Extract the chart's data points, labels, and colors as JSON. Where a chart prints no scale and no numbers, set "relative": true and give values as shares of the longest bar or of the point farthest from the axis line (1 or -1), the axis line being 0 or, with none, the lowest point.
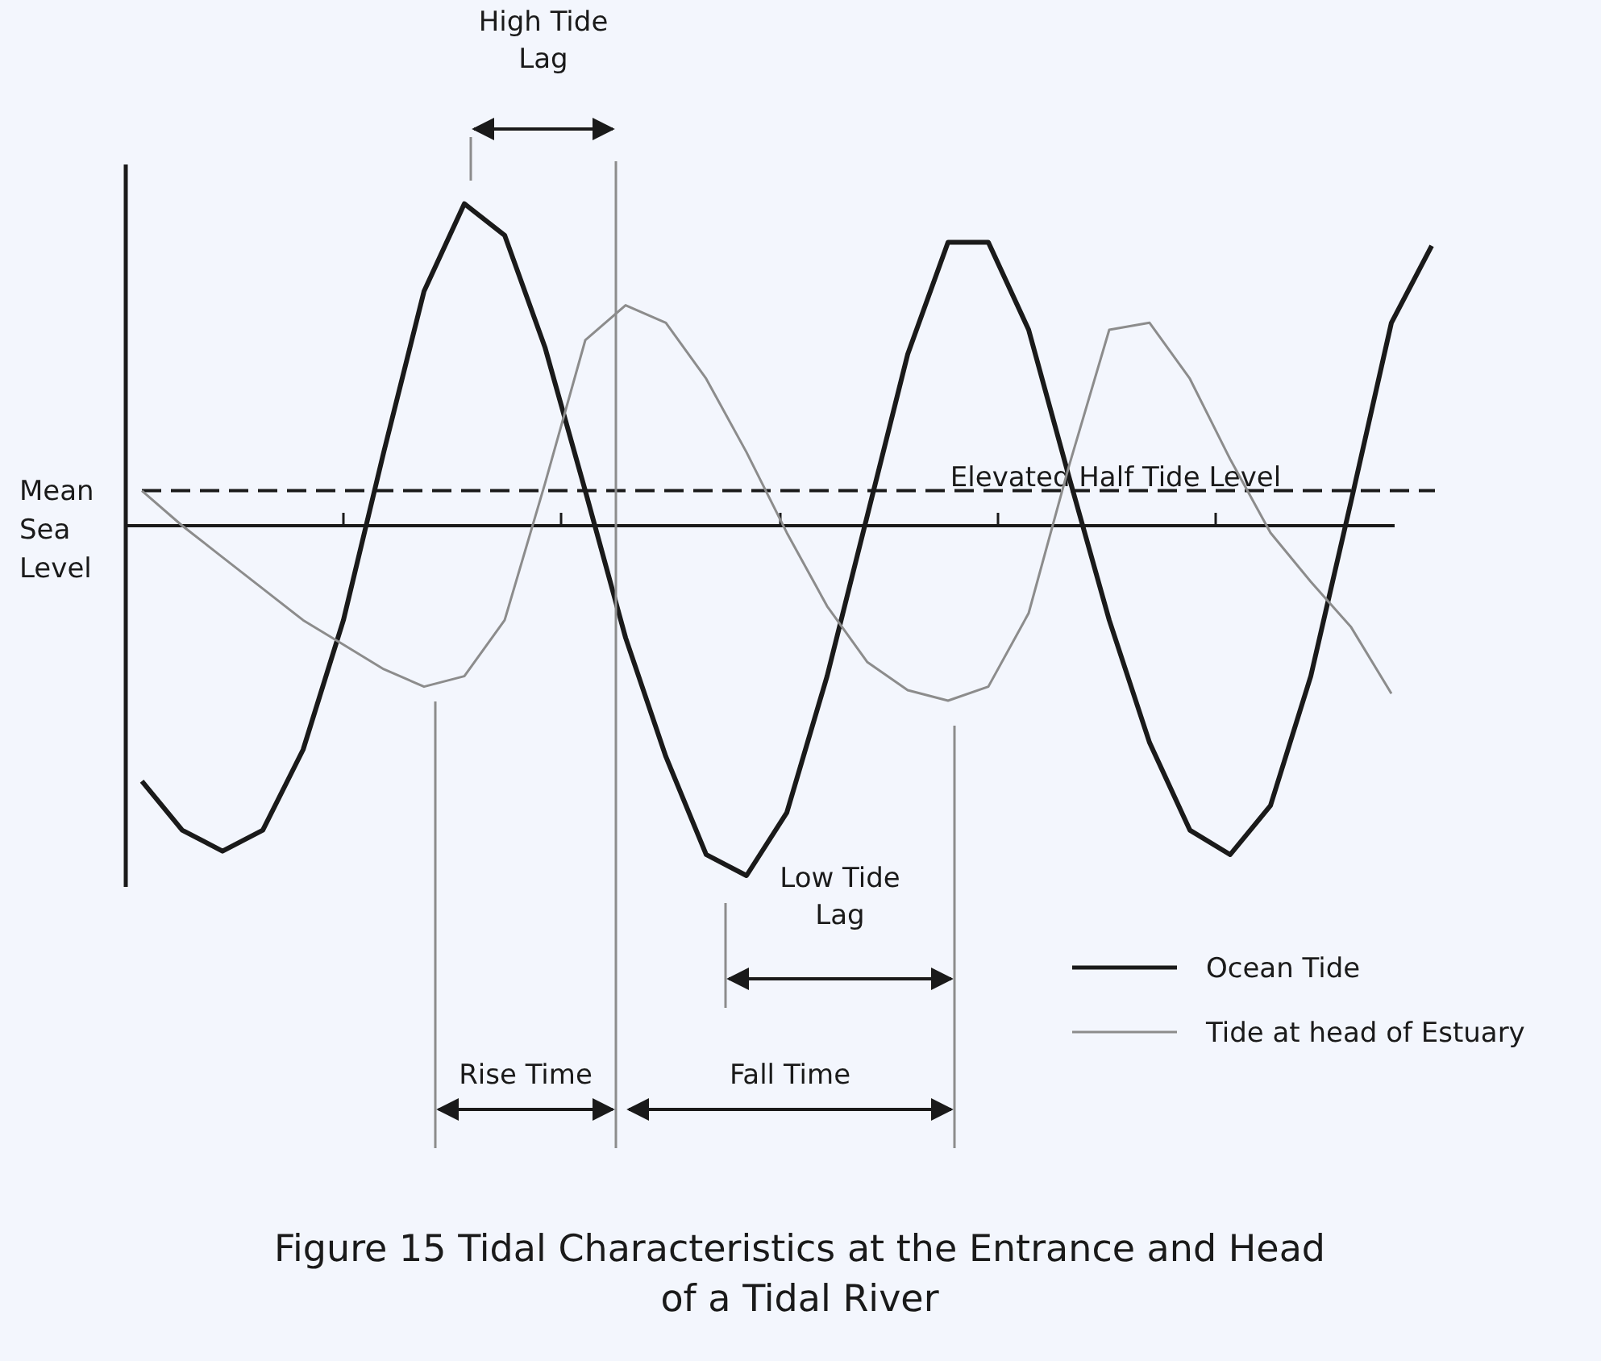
{
  "chart_data": {
    "type": "line",
    "title": "Figure 15 Tidal Characteristics at the Entrance and Head of a Tidal River",
    "relative": true,
    "legend": "bottom right",
    "categories": [
      null,
      null,
      null,
      null,
      null,
      null,
      null,
      null,
      null,
      null,
      null,
      null,
      null,
      null,
      null,
      null,
      null,
      null,
      null,
      null,
      null,
      null,
      null,
      null,
      null,
      null,
      null,
      null,
      null,
      null,
      null,
      null,
      null
    ],
    "series": [
      {
        "name": "Ocean Tide",
        "color": "#1a1a1a",
        "values": [
          -0.73,
          -0.87,
          -0.93,
          -0.87,
          -0.64,
          -0.27,
          0.21,
          0.67,
          0.92,
          0.83,
          0.51,
          0.1,
          -0.32,
          -0.66,
          -0.94,
          -1,
          -0.82,
          -0.43,
          0.03,
          0.49,
          0.81,
          0.81,
          0.56,
          0.14,
          -0.27,
          -0.62,
          -0.87,
          -0.94,
          -0.8,
          -0.43,
          0.07,
          0.58,
          0.8
        ]
      },
      {
        "name": "Tide at head of Estuary",
        "color": "#8c8c8c",
        "values": [
          0.1,
          0,
          -0.09,
          -0.18,
          -0.27,
          -0.34,
          -0.41,
          -0.46,
          -0.43,
          -0.27,
          0.12,
          0.53,
          0.63,
          0.58,
          0.42,
          0.21,
          -0.02,
          -0.23,
          -0.39,
          -0.47,
          -0.5,
          -0.46,
          -0.25,
          0.17,
          0.56,
          0.58,
          0.42,
          0.19,
          -0.02,
          -0.16,
          -0.29,
          -0.48,
          null
        ]
      }
    ],
    "ref_lines": [
      {
        "axis": "y",
        "value": 0,
        "label": "Mean Sea Level",
        "color": "#1a1a1a",
        "line_style": "solid"
      },
      {
        "axis": "y",
        "value": 0.1,
        "label": "Elevated Half Tide Level",
        "color": "#1a1a1a",
        "line_style": "dashed"
      }
    ],
    "annotations": [
      "High Tide Lag",
      "Low Tide Lag",
      "Rise Time",
      "Fall Time"
    ]
  }
}
